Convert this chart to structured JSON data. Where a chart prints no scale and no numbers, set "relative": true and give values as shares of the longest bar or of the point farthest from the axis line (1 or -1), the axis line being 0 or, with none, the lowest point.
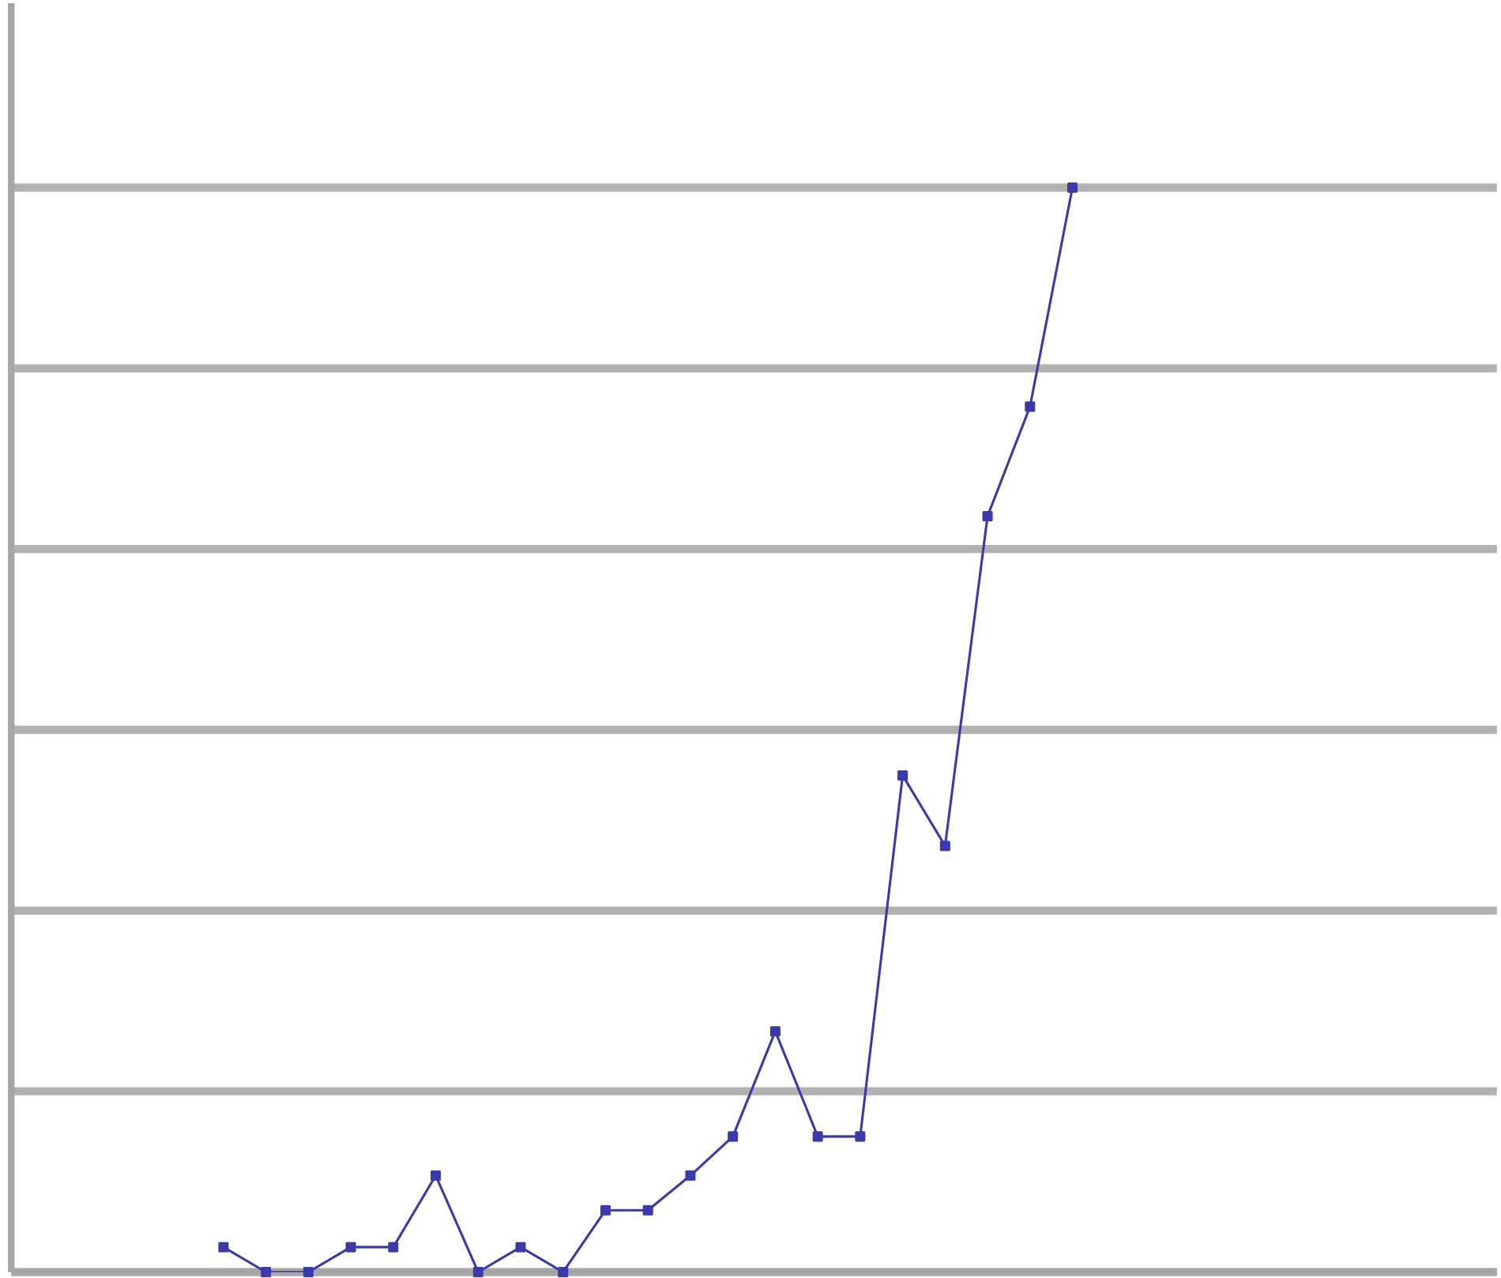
{
  "chart_data": {
    "type": "line",
    "relative": true,
    "categories": [
      null,
      null,
      null,
      null,
      null,
      null,
      null,
      null,
      null,
      null,
      null,
      null,
      null,
      null,
      null,
      null,
      null,
      null,
      null,
      null,
      null
    ],
    "series": [
      {
        "color": "#3a3aa8",
        "values": [
          0.023,
          0,
          0,
          0.023,
          0.023,
          0.089,
          0,
          0.023,
          0,
          0.057,
          0.057,
          0.089,
          0.125,
          0.222,
          0.125,
          0.125,
          0.458,
          0.393,
          0.697,
          0.798,
          1
        ]
      }
    ],
    "grid": "y",
    "marker": "square",
    "line_style": "solid"
  }
}
